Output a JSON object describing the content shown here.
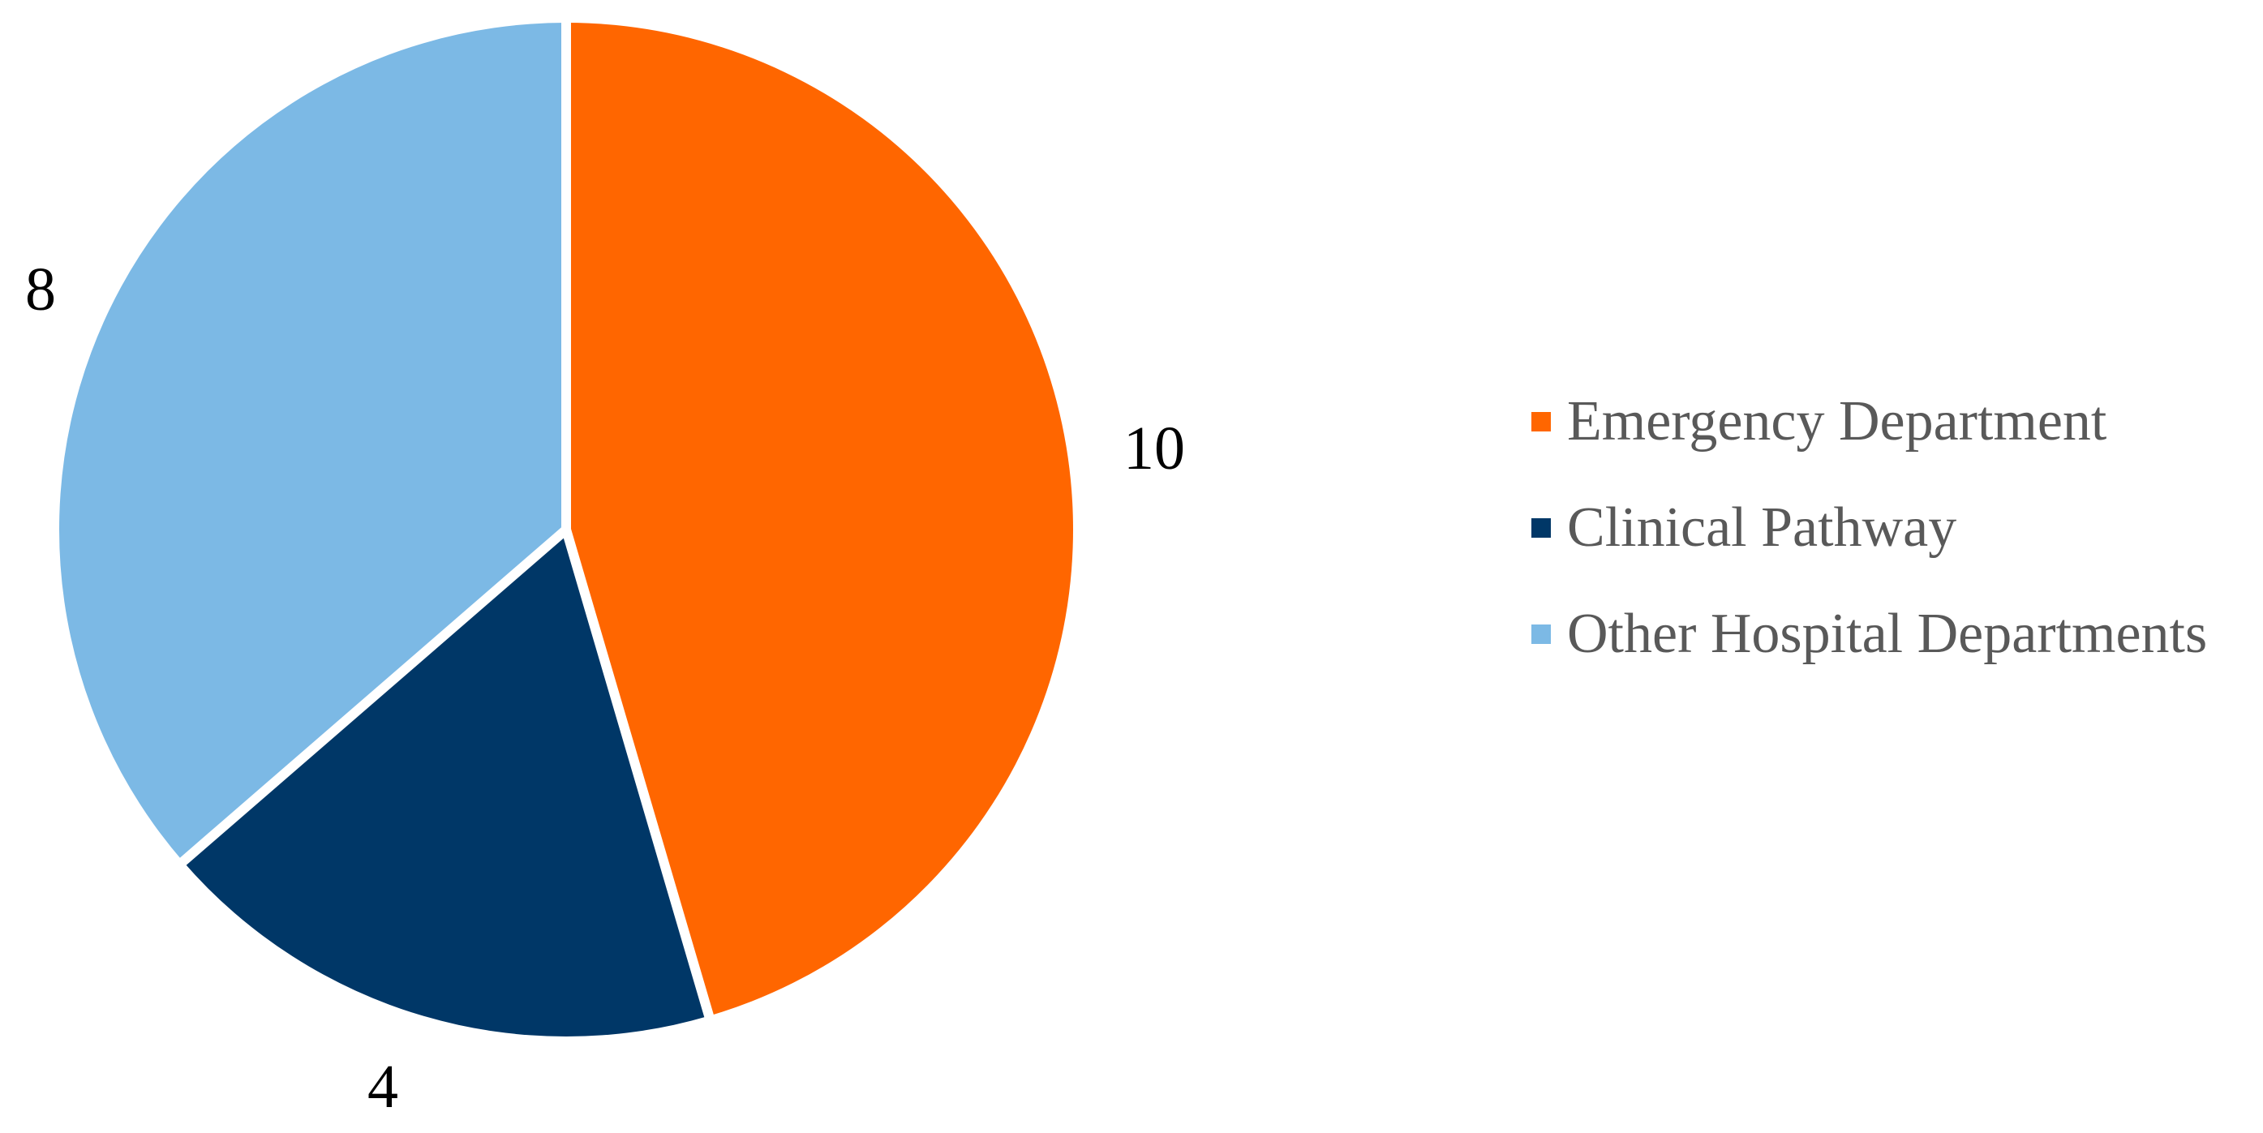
{
  "page": {
    "background_color": "#FFFFFF"
  },
  "chart_data": {
    "type": "pie",
    "title": "",
    "categories": [
      "Emergency Department",
      "Clinical Pathway",
      "Other Hospital Departments"
    ],
    "values": [
      10,
      4,
      8
    ],
    "colors": [
      "#FF6600",
      "#003767",
      "#7CB9E5"
    ],
    "slice_border_color": "#FFFFFF",
    "slice_border_width": 12,
    "start_angle_deg": 0,
    "direction": "clockwise",
    "legend_position": "right",
    "data_labels_position": "outside-end",
    "data_label_color": "#000000",
    "legend_text_color": "#595959"
  },
  "legend": {
    "items": [
      {
        "label": "Emergency Department",
        "color": "#FF6600"
      },
      {
        "label": "Clinical Pathway",
        "color": "#003767"
      },
      {
        "label": "Other Hospital Departments",
        "color": "#7CB9E5"
      }
    ]
  }
}
